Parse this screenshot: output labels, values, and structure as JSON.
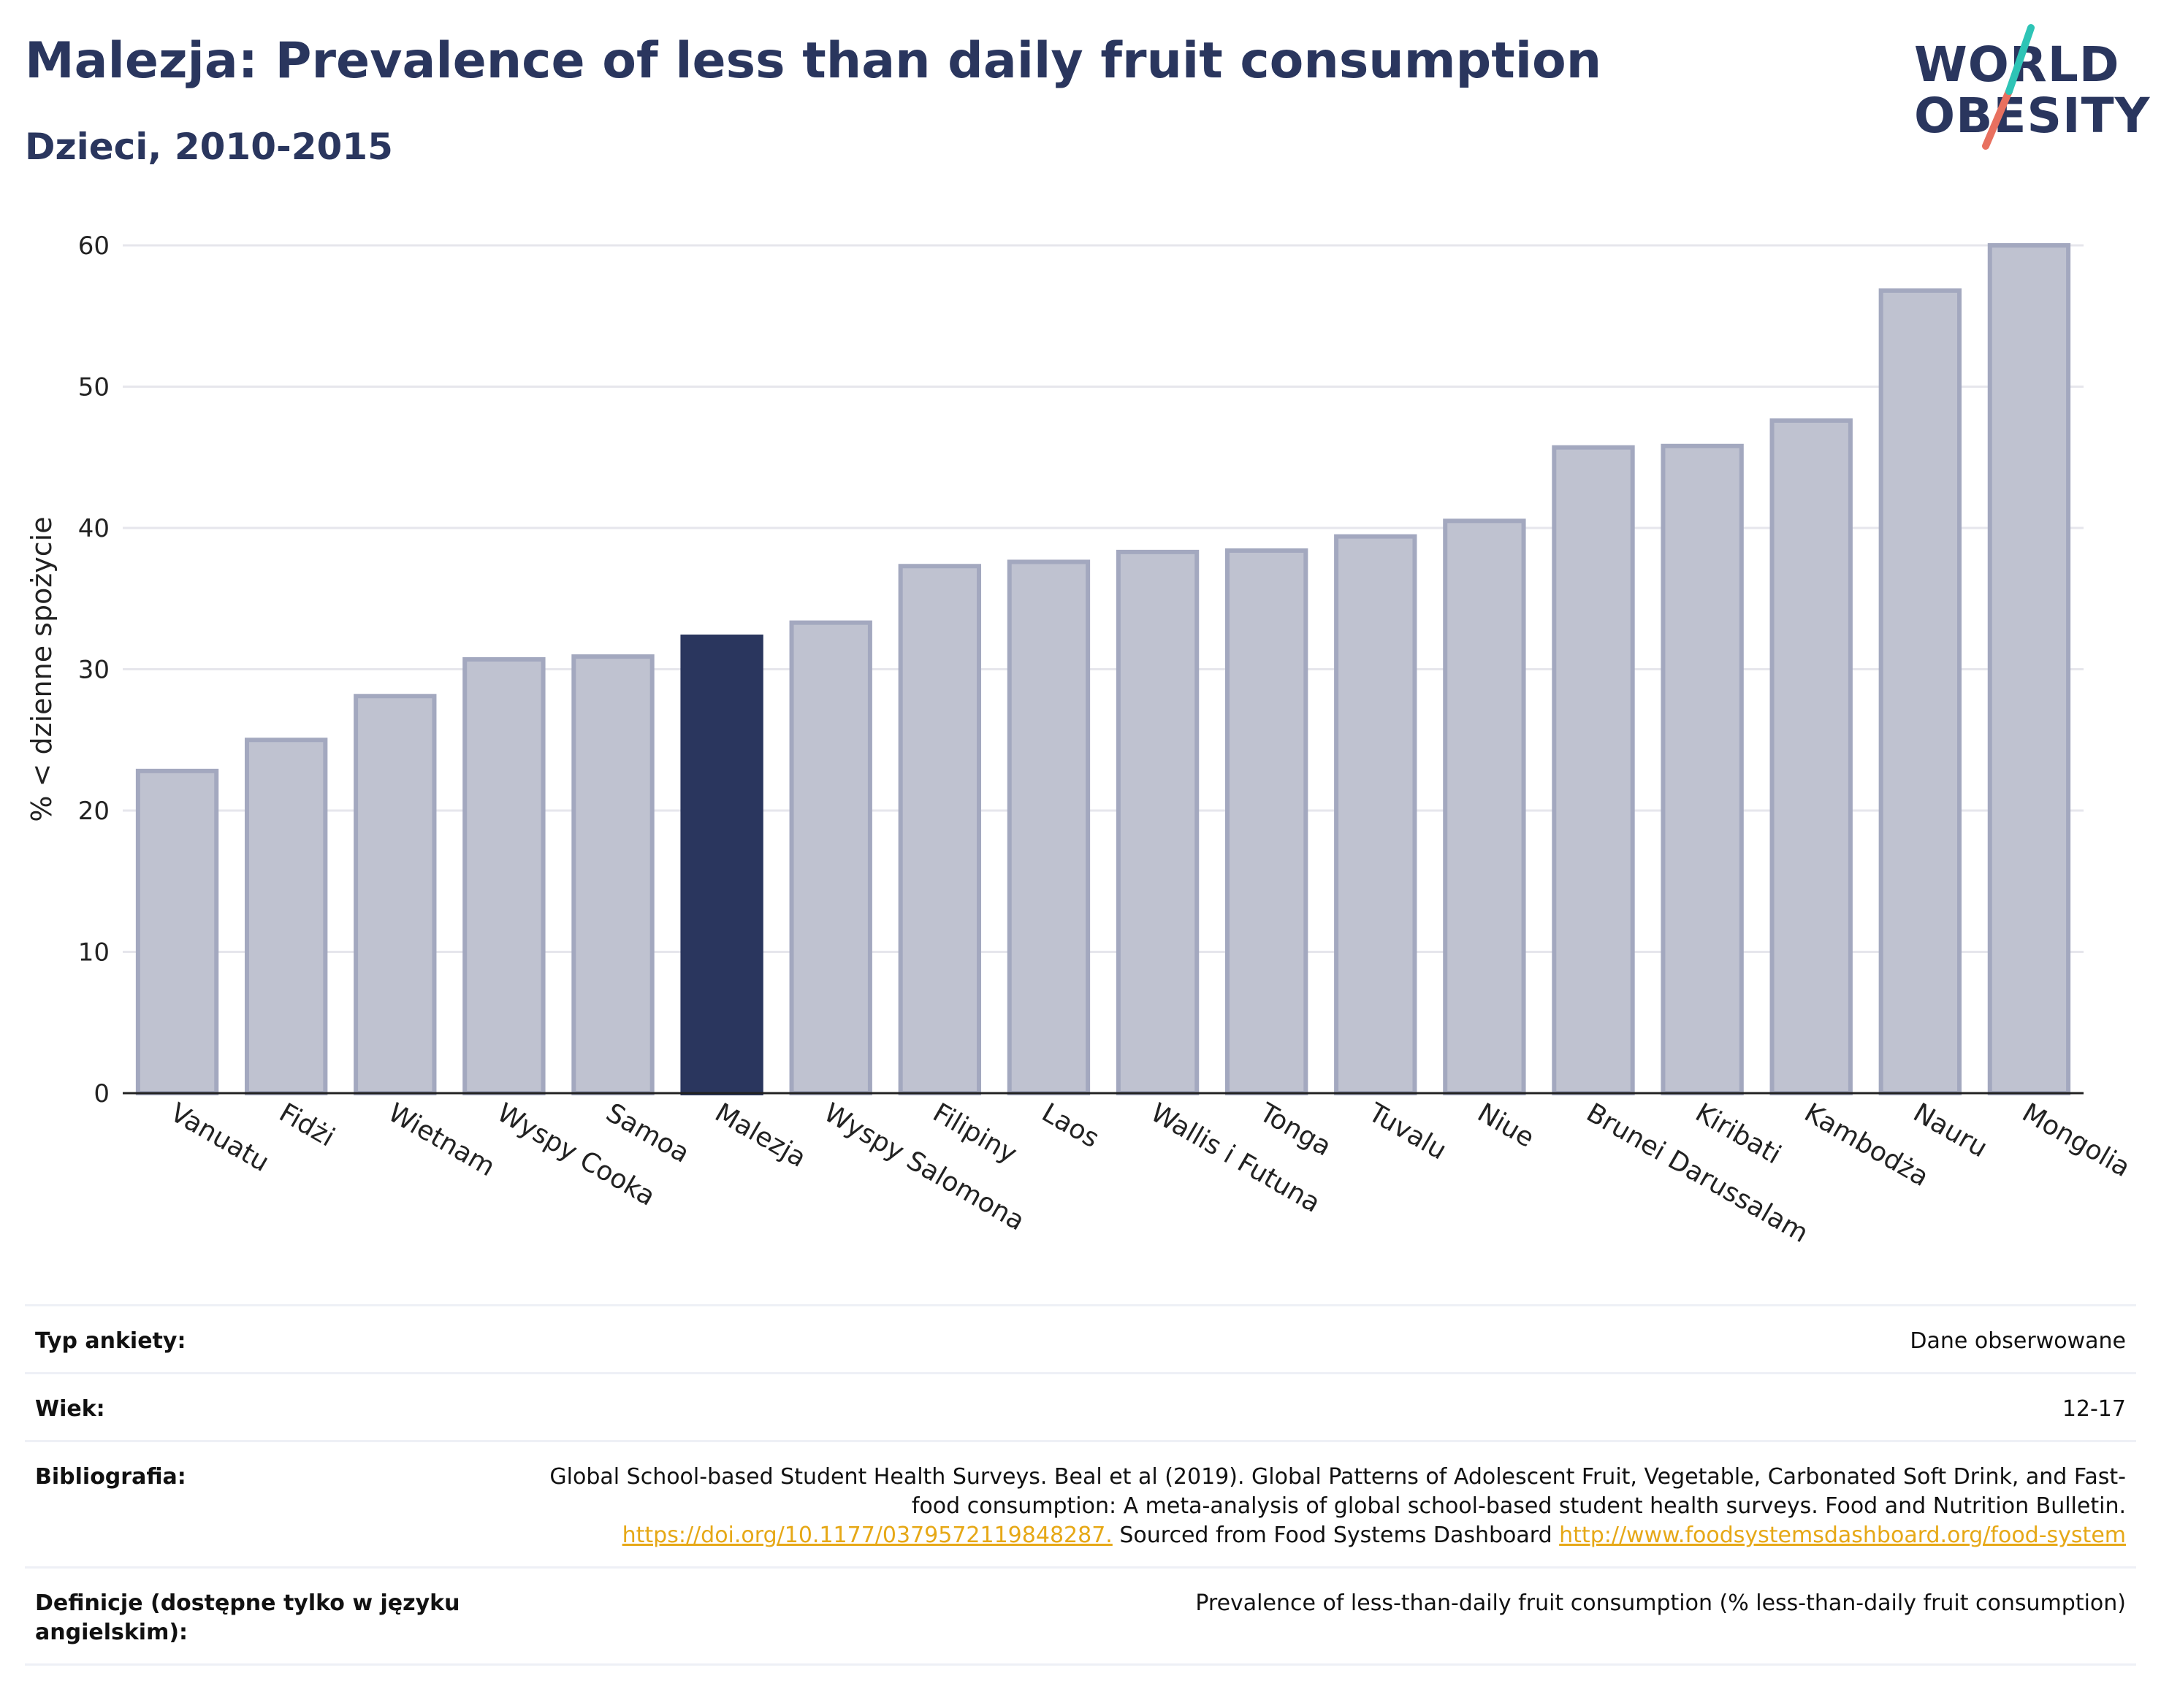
{
  "header": {
    "title": "Malezja: Prevalence of less than daily fruit consumption",
    "subtitle": "Dzieci, 2010-2015"
  },
  "logo": {
    "line1": "WORLD",
    "line2": "OBESITY",
    "slash_colors": [
      "#2ec4b6",
      "#e8705f"
    ]
  },
  "chart_data": {
    "type": "bar",
    "categories": [
      "Vanuatu",
      "Fidżi",
      "Wietnam",
      "Wyspy Cooka",
      "Samoa",
      "Malezja",
      "Wyspy Salomona",
      "Filipiny",
      "Laos",
      "Wallis i Futuna",
      "Tonga",
      "Tuvalu",
      "Niue",
      "Brunei Darussalam",
      "Kiribati",
      "Kambodża",
      "Nauru",
      "Mongolia"
    ],
    "values": [
      22.8,
      25.0,
      28.1,
      30.7,
      30.9,
      32.3,
      33.3,
      37.3,
      37.6,
      38.3,
      38.4,
      39.4,
      40.5,
      45.7,
      45.8,
      47.6,
      56.8,
      60.0
    ],
    "highlight": "Malezja",
    "xlabel": "",
    "ylabel": "% < dzienne spożycie",
    "ylim": [
      0,
      60
    ],
    "yticks": [
      0,
      10,
      20,
      30,
      40,
      50,
      60
    ],
    "grid": true,
    "colors": {
      "bar": "#bfc2d0",
      "bar_border": "#a3a8bf",
      "highlight": "#2a365e",
      "grid": "#e6e6ec",
      "axis": "#222222"
    }
  },
  "meta": {
    "survey_label": "Typ ankiety:",
    "survey_value": "Dane obserwowane",
    "age_label": "Wiek:",
    "age_value": "12-17",
    "biblio_label": "Bibliografia:",
    "biblio_text": "Global School-based Student Health Surveys. Beal et al (2019). Global Patterns of Adolescent Fruit, Vegetable, Carbonated Soft Drink, and Fast-food consumption: A meta-analysis of global school-based student health surveys. Food and Nutrition Bulletin.",
    "biblio_link1": "https://doi.org/10.1177/0379572119848287.",
    "biblio_mid": " Sourced from Food Systems Dashboard ",
    "biblio_link2": "http://www.foodsystemsdashboard.org/food-system",
    "def_label": "Definicje (dostępne tylko w języku angielskim):",
    "def_value": "Prevalence of less-than-daily fruit consumption (% less-than-daily fruit consumption)"
  }
}
